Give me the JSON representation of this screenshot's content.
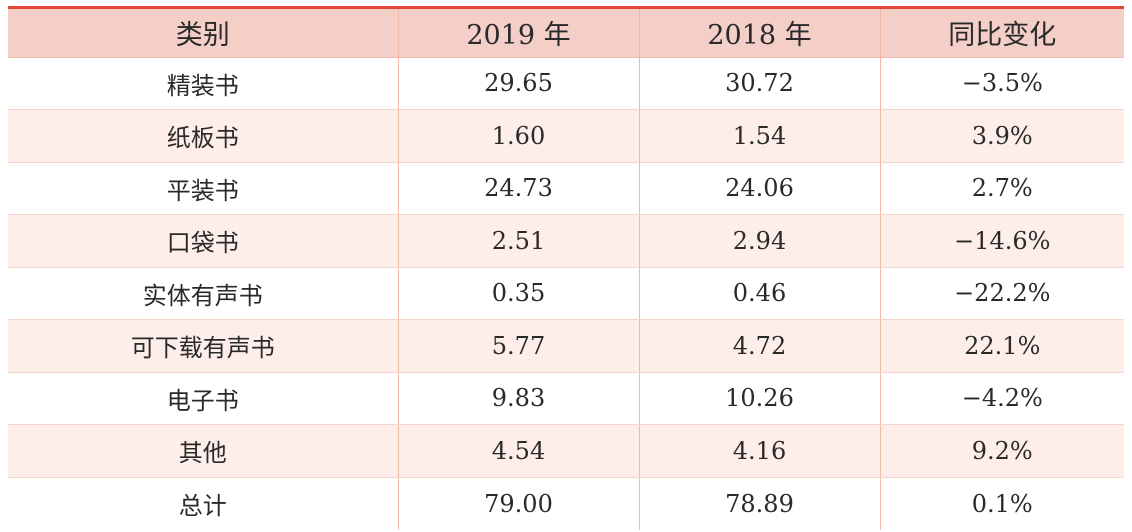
{
  "headers": [
    "类别",
    "2019 年",
    "2018 年",
    "同比变化"
  ],
  "rows": [
    {
      "category": "精装书",
      "y2019": "29.65",
      "y2018": "30.72",
      "change": "−3.5%"
    },
    {
      "category": "纸板书",
      "y2019": "1.60",
      "y2018": "1.54",
      "change": "3.9%"
    },
    {
      "category": "平装书",
      "y2019": "24.73",
      "y2018": "24.06",
      "change": "2.7%"
    },
    {
      "category": "口袋书",
      "y2019": "2.51",
      "y2018": "2.94",
      "change": "−14.6%"
    },
    {
      "category": "实体有声书",
      "y2019": "0.35",
      "y2018": "0.46",
      "change": "−22.2%"
    },
    {
      "category": "可下载有声书",
      "y2019": "5.77",
      "y2018": "4.72",
      "change": "22.1%"
    },
    {
      "category": "电子书",
      "y2019": "9.83",
      "y2018": "10.26",
      "change": "−4.2%"
    },
    {
      "category": "其他",
      "y2019": "4.54",
      "y2018": "4.16",
      "change": "9.2%"
    },
    {
      "category": "总计",
      "y2019": "79.00",
      "y2018": "78.89",
      "change": "0.1%"
    }
  ],
  "colors": {
    "accent_line": "#e2483a",
    "header_bg": "#f3cfc7",
    "stripe_bg": "#fdeee9",
    "divider": "#f2b9a8"
  }
}
